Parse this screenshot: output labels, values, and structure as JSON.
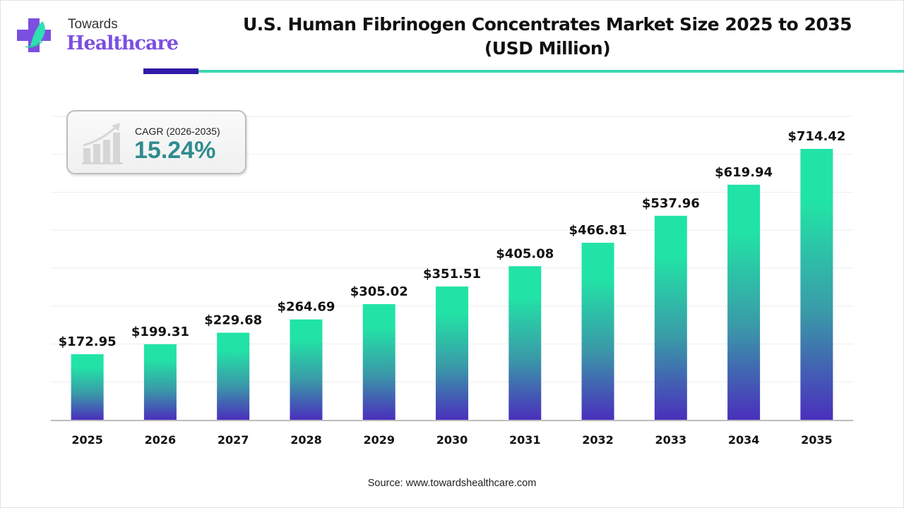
{
  "brand": {
    "line1": "Towards",
    "line2": "Healthcare"
  },
  "title_line1": "U.S. Human Fibrinogen Concentrates Market Size 2025 to 2035",
  "title_line2": "(USD Million)",
  "cagr": {
    "label": "CAGR (2026-2035)",
    "value": "15.24%",
    "icon": "growth-chart-icon"
  },
  "source": "Source: www.towardshealthcare.com",
  "colors": {
    "bar_top": "#22e3a6",
    "bar_mid": "#3a9aa8",
    "bar_bottom": "#4a2fbc",
    "accent_dark": "#2f1aa8",
    "accent_teal": "#3dd6b0",
    "cagr_text": "#2f8c8f"
  },
  "chart_data": {
    "type": "bar",
    "title": "U.S. Human Fibrinogen Concentrates Market Size 2025 to 2035 (USD Million)",
    "categories": [
      "2025",
      "2026",
      "2027",
      "2028",
      "2029",
      "2030",
      "2031",
      "2032",
      "2033",
      "2034",
      "2035"
    ],
    "values": [
      172.95,
      199.31,
      229.68,
      264.69,
      305.02,
      351.51,
      405.08,
      466.81,
      537.96,
      619.94,
      714.42
    ],
    "data_labels": [
      "$172.95",
      "$199.31",
      "$229.68",
      "$264.69",
      "$305.02",
      "$351.51",
      "$405.08",
      "$466.81",
      "$537.96",
      "$619.94",
      "$714.42"
    ],
    "xlabel": "",
    "ylabel": "",
    "ylim": [
      0,
      800
    ],
    "grid_step": 100,
    "grid": true,
    "y_tick_labels_shown": false
  }
}
